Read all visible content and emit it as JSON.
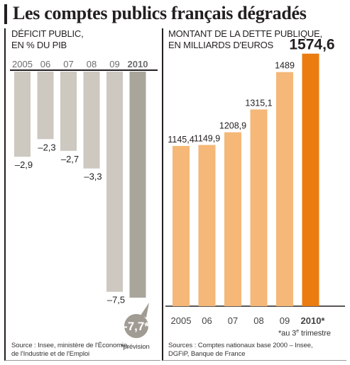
{
  "title": "Les comptes publics français dégradés",
  "left": {
    "subtitle_lines": [
      "DÉFICIT PUBLIC,",
      "EN % DU PIB"
    ],
    "source_lines": [
      "Source : Insee, ministère de l'Économie,",
      "de l'Industrie et de l'Emploi"
    ],
    "footnote": "*prévision"
  },
  "right": {
    "subtitle_lines": [
      "MONTANT DE LA DETTE PUBLIQUE,",
      "EN MILLIARDS D'EUROS"
    ],
    "source_lines": [
      "Sources : Comptes nationaux base 2000 – Insee,",
      "DGFiP, Banque de France"
    ],
    "footnote_prefix": "*au 3",
    "footnote_sup": "e",
    "footnote_suffix": " trimestre"
  },
  "colors": {
    "deficit_bar": "#cdc8c0",
    "deficit_bar_highlight": "#aaa59b",
    "debt_bar": "#f5b878",
    "debt_bar_highlight": "#ea7c10",
    "bubble": "#a09b93"
  },
  "chart_data": [
    {
      "type": "bar",
      "categories": [
        "2005",
        "06",
        "07",
        "08",
        "09",
        "2010"
      ],
      "values": [
        -2.9,
        -2.3,
        -2.7,
        -3.3,
        -7.5,
        -7.7
      ],
      "value_labels": [
        "–2,9",
        "–2,3",
        "–2,7",
        "–3,3",
        "–7,5",
        "-7,7*"
      ],
      "highlight_index": 5,
      "ylim": [
        -8,
        0
      ],
      "axis_position": "top",
      "title": "DÉFICIT PUBLIC, EN % DU PIB"
    },
    {
      "type": "bar",
      "categories": [
        "2005",
        "06",
        "07",
        "08",
        "09",
        "2010*"
      ],
      "values": [
        1145.4,
        1149.9,
        1208.9,
        1315.1,
        1489,
        1574.6
      ],
      "value_labels": [
        "1145,4",
        "1149,9",
        "1208,9",
        "1315,1",
        "1489",
        "1574,6"
      ],
      "highlight_index": 5,
      "ylim": [
        400,
        1600
      ],
      "axis_position": "bottom",
      "title": "MONTANT DE LA DETTE PUBLIQUE, EN MILLIARDS D'EUROS"
    }
  ]
}
